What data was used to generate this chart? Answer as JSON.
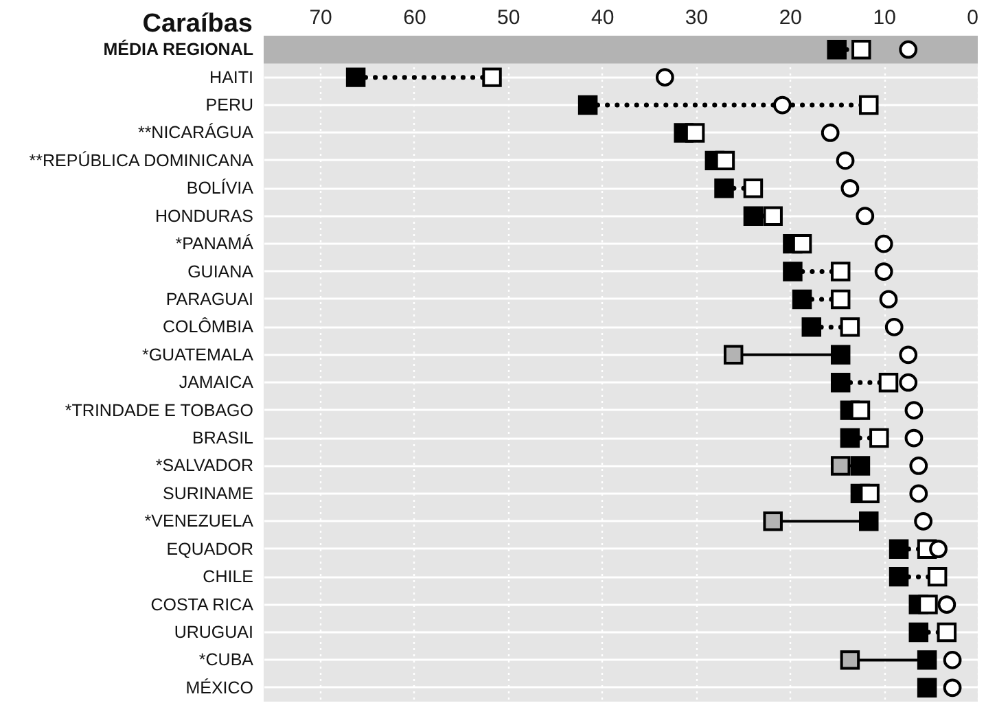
{
  "chart_data": {
    "type": "scatter",
    "title": "Caraíbas",
    "orientation": "horizontal",
    "categories": [
      "MÉDIA REGIONAL",
      "HAITI",
      "PERU",
      "**NICARÁGUA",
      "**REPÚBLICA DOMINICANA",
      "BOLÍVIA",
      "HONDURAS",
      "*PANAMÁ",
      "GUIANA",
      "PARAGUAI",
      "COLÔMBIA",
      "*GUATEMALA",
      "JAMAICA",
      "*TRINDADE E TOBAGO",
      "BRASIL",
      "*SALVADOR",
      "SURINAME",
      "*VENEZUELA",
      "EQUADOR",
      "CHILE",
      "COSTA RICA",
      "URUGUAI",
      "*CUBA",
      "MÉXICO"
    ],
    "series": [
      {
        "color": "#000000",
        "marker": "square",
        "values": [
          15.0,
          66.2,
          41.5,
          31.3,
          28.0,
          27.0,
          23.9,
          19.7,
          19.7,
          18.7,
          17.7,
          14.6,
          14.6,
          13.6,
          13.6,
          12.5,
          12.5,
          11.6,
          8.4,
          8.4,
          6.3,
          6.3,
          5.4,
          5.4
        ]
      },
      {
        "color": "#ffffff",
        "marker": "square",
        "line_style": "dotted",
        "values": [
          12.4,
          51.7,
          11.6,
          30.1,
          26.9,
          23.9,
          21.8,
          18.7,
          14.6,
          14.6,
          13.6,
          null,
          9.5,
          12.5,
          10.5,
          null,
          11.5,
          null,
          5.4,
          4.3,
          5.3,
          3.3,
          null,
          null
        ]
      },
      {
        "color": "#b3b3b3",
        "marker": "square",
        "line_style": "solid",
        "values": [
          null,
          null,
          null,
          null,
          null,
          null,
          null,
          null,
          null,
          null,
          null,
          26.0,
          null,
          null,
          null,
          14.6,
          null,
          21.8,
          null,
          null,
          null,
          null,
          13.6,
          null
        ]
      },
      {
        "color": "#ffffff",
        "marker": "circle",
        "values": [
          7.4,
          33.3,
          20.8,
          15.7,
          14.1,
          13.6,
          12.0,
          10.0,
          10.0,
          9.5,
          8.9,
          7.4,
          7.4,
          6.8,
          6.8,
          6.3,
          6.3,
          5.8,
          4.2,
          null,
          3.3,
          null,
          2.7,
          2.7
        ]
      }
    ],
    "xlim": [
      76,
      0
    ],
    "xticks": [
      70,
      60,
      50,
      40,
      30,
      20,
      10,
      0
    ],
    "grid": true,
    "bands": [
      {
        "axis": "y",
        "from": "MÉDIA REGIONAL",
        "to": "MÉDIA REGIONAL",
        "color": "#b3b3b3"
      }
    ]
  }
}
